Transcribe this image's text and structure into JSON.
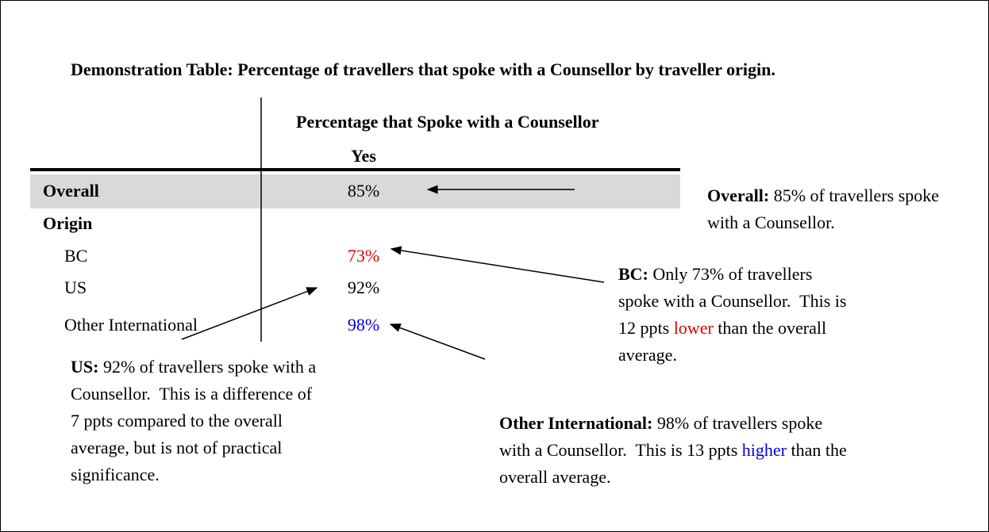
{
  "title": "Demonstration Table: Percentage of travellers that spoke with a Counsellor by traveller origin.",
  "table": {
    "header": "Percentage that Spoke with a Counsellor",
    "subheader": "Yes",
    "rows": [
      {
        "label": "Overall",
        "value": "85%",
        "bold": true,
        "shaded": true
      },
      {
        "label": "Origin",
        "bold": true
      },
      {
        "label": "BC",
        "value": "73%",
        "color": "#e00000"
      },
      {
        "label": "US",
        "value": "92%"
      },
      {
        "label": "Other International",
        "value": "98%",
        "color": "#0000e0"
      }
    ]
  },
  "annotations": [
    {
      "label": "Overall:",
      "parts": [
        {
          "text": " 85% of travellers spoke with a Counsellor."
        }
      ]
    },
    {
      "label": "BC:",
      "parts": [
        {
          "text": " Only 73% of travellers spoke with a Counsellor.  This is 12 ppts "
        },
        {
          "text": "lower",
          "color": "#e00000"
        },
        {
          "text": " than the overall average."
        }
      ]
    },
    {
      "label": "US:",
      "parts": [
        {
          "text": " 92% of travellers spoke with a Counsellor.  This is a difference of 7 ppts compared to the overall average, but is not of practical significance."
        }
      ]
    },
    {
      "label": "Other International:",
      "parts": [
        {
          "text": " 98% of travellers spoke with a Counsellor.  This is 13 ppts "
        },
        {
          "text": "higher",
          "color": "#0000e0"
        },
        {
          "text": " than the overall average."
        }
      ]
    }
  ]
}
